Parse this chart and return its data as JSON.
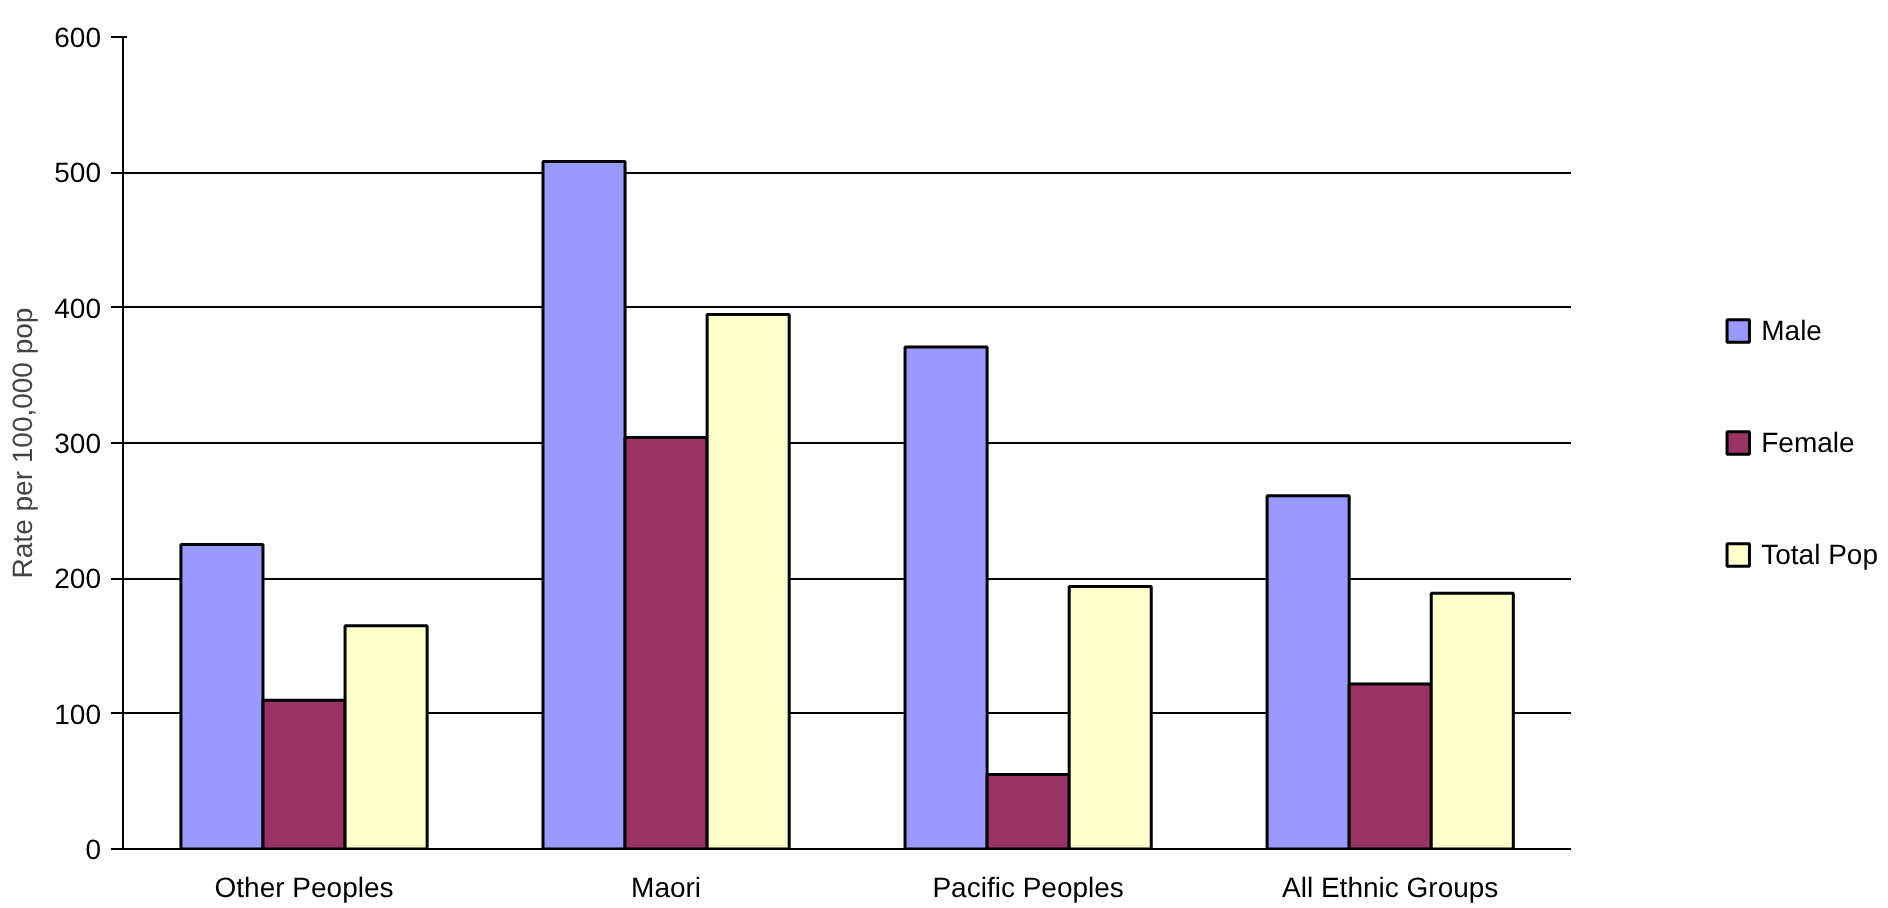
{
  "chart_data": {
    "type": "bar",
    "ylabel": "Rate per 100,000 pop",
    "categories": [
      "Other Peoples",
      "Maori",
      "Pacific Peoples",
      "All Ethnic Groups"
    ],
    "series": [
      {
        "name": "Male",
        "color": "#9999ff",
        "values": [
          225,
          508,
          371,
          261
        ]
      },
      {
        "name": "Female",
        "color": "#993366",
        "values": [
          110,
          304,
          55,
          122
        ]
      },
      {
        "name": "Total Pop",
        "color": "#ffffcc",
        "values": [
          165,
          395,
          194,
          189
        ]
      }
    ],
    "ylim": [
      0,
      600
    ],
    "yticks": [
      0,
      100,
      200,
      300,
      400,
      500,
      600
    ],
    "grid": "y",
    "legend": "right"
  }
}
